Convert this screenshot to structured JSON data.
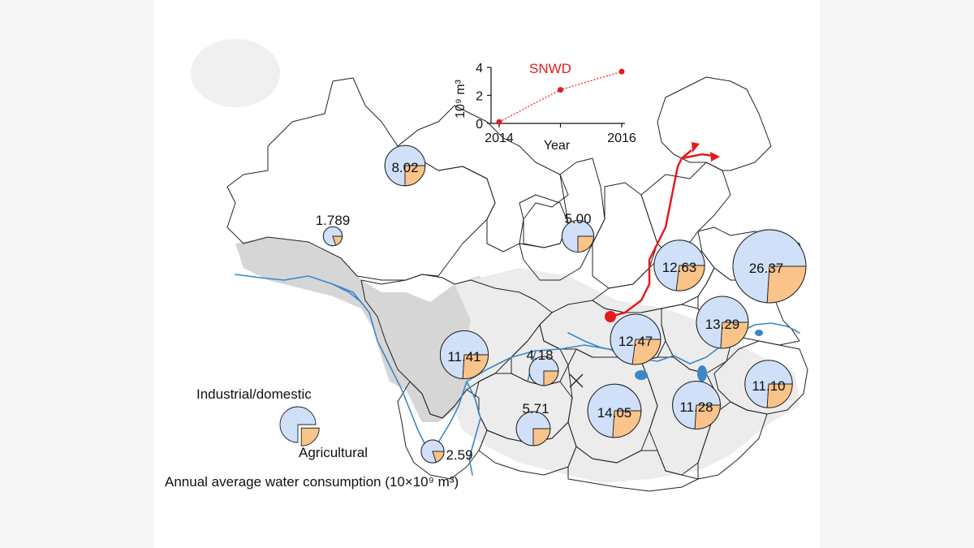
{
  "colors": {
    "agricultural": "#cfe0f8",
    "industrial": "#f9c38a",
    "outline": "#222222",
    "river": "#3c86c9",
    "route": "#e41a1c",
    "terrain": "#d5d5d5"
  },
  "provinces": [
    {
      "id": "xinjiang-like",
      "label": "1.789",
      "value": 1.789,
      "industrial_share": 0.2
    },
    {
      "id": "gansu-north",
      "label": "8.02",
      "value": 8.02,
      "industrial_share": 0.25
    },
    {
      "id": "shaanxi-north",
      "label": "5.00",
      "value": 5.0,
      "industrial_share": 0.25
    },
    {
      "id": "henan-north",
      "label": "12.63",
      "value": 12.63,
      "industrial_share": 0.27
    },
    {
      "id": "shandong",
      "label": "26.37",
      "value": 26.37,
      "industrial_share": 0.26
    },
    {
      "id": "jiangsu",
      "label": "13.29",
      "value": 13.29,
      "industrial_share": 0.26
    },
    {
      "id": "hubei",
      "label": "12.47",
      "value": 12.47,
      "industrial_share": 0.27
    },
    {
      "id": "sichuan",
      "label": "11.41",
      "value": 11.41,
      "industrial_share": 0.26
    },
    {
      "id": "chongqing",
      "label": "4.18",
      "value": 4.18,
      "industrial_share": 0.25
    },
    {
      "id": "guizhou",
      "label": "5.71",
      "value": 5.71,
      "industrial_share": 0.25
    },
    {
      "id": "hunan",
      "label": "14.05",
      "value": 14.05,
      "industrial_share": 0.26
    },
    {
      "id": "jiangxi",
      "label": "11.28",
      "value": 11.28,
      "industrial_share": 0.26
    },
    {
      "id": "zhejiang",
      "label": "11.10",
      "value": 11.1,
      "industrial_share": 0.26
    },
    {
      "id": "yunnan",
      "label": "2.59",
      "value": 2.59,
      "industrial_share": 0.2
    }
  ],
  "legend": {
    "industrial_label": "Industrial/domestic",
    "agricultural_label": "Agricultural",
    "caption": "Annual average water consumption (10×10⁹ m³)"
  },
  "inset": {
    "title": "SNWD",
    "ylabel": "10⁹ m³",
    "xlabel": "Year",
    "x_tick_labels": [
      "2014",
      "2016"
    ],
    "y_tick_labels": [
      "0",
      "2",
      "4"
    ],
    "chart_data": {
      "type": "line",
      "title": "SNWD",
      "xlabel": "Year",
      "ylabel": "10⁹ m³",
      "x": [
        2014,
        2015,
        2016
      ],
      "values": [
        0.1,
        2.4,
        3.7
      ],
      "xlim": [
        2014,
        2016
      ],
      "ylim": [
        0,
        4
      ]
    }
  }
}
